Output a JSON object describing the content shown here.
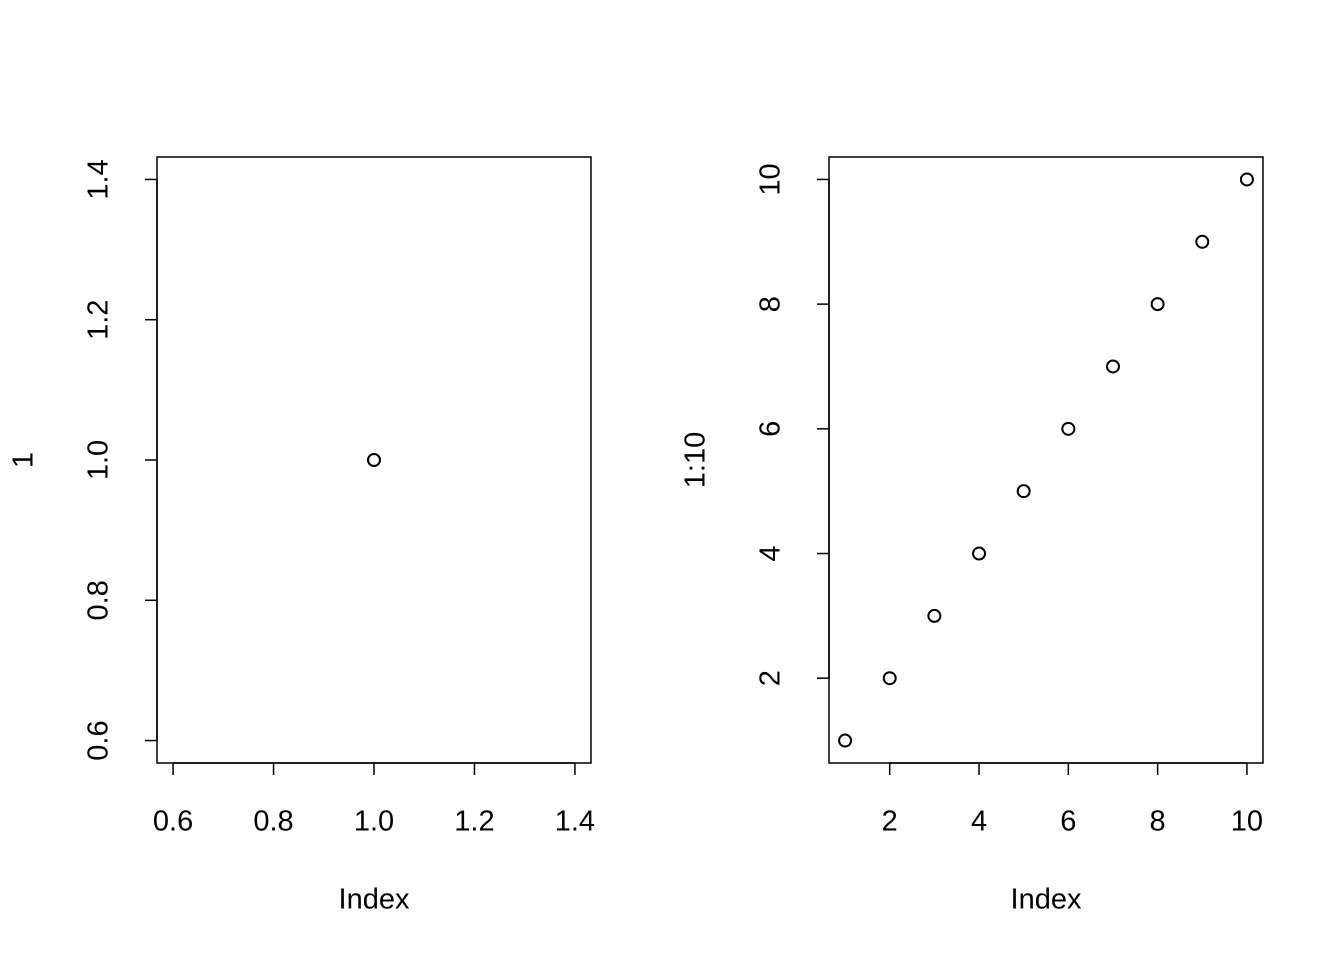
{
  "chart_data": [
    {
      "type": "scatter",
      "x_label": "Index",
      "y_label": "1",
      "x": [
        1
      ],
      "values": [
        1
      ],
      "color": "#000000",
      "xlim": [
        0.568,
        1.432
      ],
      "ylim": [
        0.568,
        1.432
      ],
      "xticks": [
        0.6,
        0.8,
        {
          "value": 1,
          "label": "1.0"
        },
        1.2,
        1.4
      ],
      "yticks": [
        0.6,
        0.8,
        {
          "value": 1,
          "label": "1.0"
        },
        1.2,
        1.4
      ]
    },
    {
      "type": "scatter",
      "x_label": "Index",
      "y_label": "1:10",
      "x": [
        1,
        2,
        3,
        4,
        5,
        6,
        7,
        8,
        9,
        10
      ],
      "values": [
        1,
        2,
        3,
        4,
        5,
        6,
        7,
        8,
        9,
        10
      ],
      "color": "#000000",
      "xlim": [
        0.64,
        10.36
      ],
      "ylim": [
        0.64,
        10.36
      ],
      "xticks": [
        2,
        4,
        6,
        8,
        10
      ],
      "yticks": [
        2,
        4,
        6,
        8,
        10
      ]
    }
  ]
}
